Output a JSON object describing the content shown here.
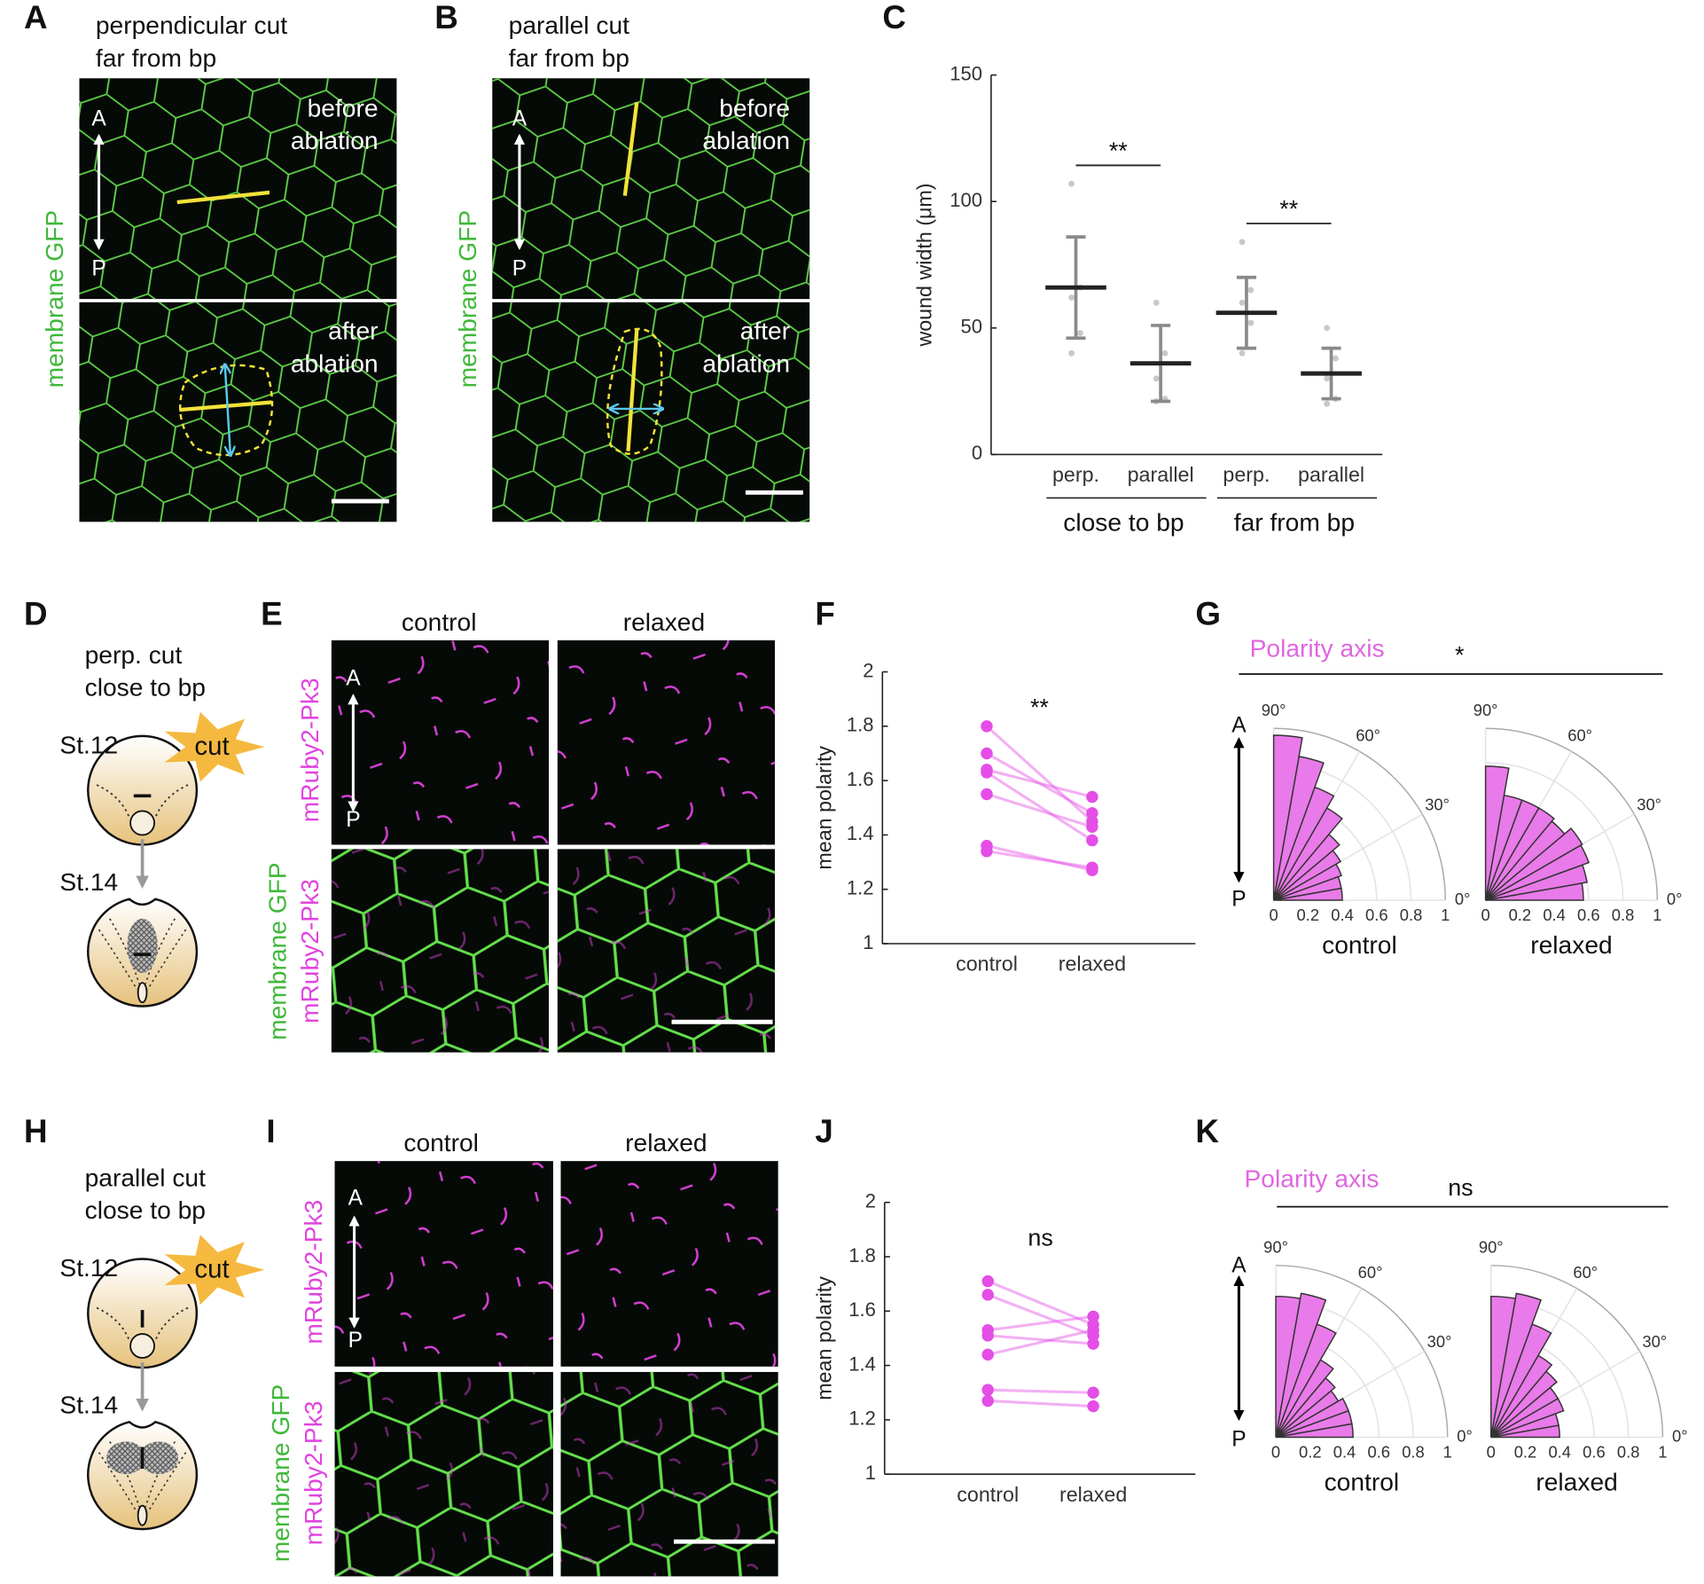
{
  "panel_labels": [
    "A",
    "B",
    "C",
    "D",
    "E",
    "F",
    "G",
    "H",
    "I",
    "J",
    "K"
  ],
  "panel_a": {
    "title": [
      "perpendicular cut",
      "far from bp"
    ],
    "channel": "membrane GFP",
    "before": [
      "before",
      "ablation"
    ],
    "after": [
      "after",
      "ablation"
    ],
    "axis": [
      "A",
      "P"
    ]
  },
  "panel_b": {
    "title": [
      "parallel cut",
      "far from bp"
    ],
    "channel": "membrane GFP",
    "before": [
      "before",
      "ablation"
    ],
    "after": [
      "after",
      "ablation"
    ],
    "axis": [
      "A",
      "P"
    ]
  },
  "panel_d": {
    "title": [
      "perp. cut",
      "close to bp"
    ],
    "stages": [
      "St.12",
      "St.14"
    ],
    "cut": "cut"
  },
  "panel_e": {
    "columns": [
      "control",
      "relaxed"
    ],
    "channels": [
      "mRuby2-Pk3",
      "membrane GFP",
      "mRuby2-Pk3"
    ],
    "axis": [
      "A",
      "P"
    ]
  },
  "panel_g": {
    "header": "Polarity axis",
    "significance": "*",
    "axis": [
      "A",
      "P"
    ]
  },
  "panel_h": {
    "title": [
      "parallel cut",
      "close to bp"
    ],
    "stages": [
      "St.12",
      "St.14"
    ],
    "cut": "cut"
  },
  "panel_i": {
    "columns": [
      "control",
      "relaxed"
    ],
    "channels": [
      "mRuby2-Pk3",
      "membrane GFP",
      "mRuby2-Pk3"
    ],
    "axis": [
      "A",
      "P"
    ]
  },
  "panel_k": {
    "header": "Polarity axis",
    "significance": "ns",
    "axis": [
      "A",
      "P"
    ]
  },
  "chart_data": [
    {
      "type": "errorbar-scatter",
      "ylabel": "wound width (μm)",
      "categories": [
        "perp.",
        "parallel",
        "perp.",
        "parallel"
      ],
      "groups": [
        "close to bp",
        "far from bp"
      ],
      "means": [
        66,
        36,
        56,
        32
      ],
      "errors": [
        20,
        15,
        14,
        10
      ],
      "points": [
        [
          107,
          66,
          62,
          48,
          40
        ],
        [
          60,
          40,
          30,
          22,
          21
        ],
        [
          84,
          65,
          60,
          52,
          40
        ],
        [
          50,
          38,
          30,
          22,
          20
        ]
      ],
      "ylim": [
        0,
        150
      ],
      "yticks": [
        0,
        50,
        100,
        150
      ],
      "significance": [
        "**",
        "**"
      ],
      "color": "#8a8a8a",
      "mean_color": "#222222"
    },
    {
      "type": "paired-line",
      "ylabel": "mean polarity",
      "categories": [
        "control",
        "relaxed"
      ],
      "series": [
        {
          "values": [
            1.8,
            1.45
          ]
        },
        {
          "values": [
            1.7,
            1.48
          ]
        },
        {
          "values": [
            1.64,
            1.54
          ]
        },
        {
          "values": [
            1.63,
            1.38
          ]
        },
        {
          "values": [
            1.55,
            1.43
          ]
        },
        {
          "values": [
            1.36,
            1.27
          ]
        },
        {
          "values": [
            1.34,
            1.28
          ]
        }
      ],
      "color": "#e44ee6",
      "ylim": [
        1,
        2
      ],
      "yticks": [
        1,
        1.2,
        1.4,
        1.6,
        1.8,
        2
      ],
      "annotation": "**"
    },
    {
      "type": "paired-line",
      "ylabel": "mean polarity",
      "categories": [
        "control",
        "relaxed"
      ],
      "series": [
        {
          "values": [
            1.71,
            1.55
          ]
        },
        {
          "values": [
            1.66,
            1.51
          ]
        },
        {
          "values": [
            1.53,
            1.58
          ]
        },
        {
          "values": [
            1.51,
            1.48
          ]
        },
        {
          "values": [
            1.44,
            1.53
          ]
        },
        {
          "values": [
            1.31,
            1.3
          ]
        },
        {
          "values": [
            1.27,
            1.25
          ]
        }
      ],
      "color": "#e44ee6",
      "ylim": [
        1,
        2
      ],
      "yticks": [
        1,
        1.2,
        1.4,
        1.6,
        1.8,
        2
      ],
      "annotation": "ns"
    },
    {
      "type": "polar-histogram",
      "title": "control",
      "bins": [
        0,
        10,
        20,
        30,
        40,
        50,
        60,
        70,
        80,
        90
      ],
      "values": [
        0.4,
        0.4,
        0.42,
        0.45,
        0.5,
        0.62,
        0.7,
        0.85,
        0.96
      ],
      "color": "#e97ae9",
      "rlim": [
        0,
        1
      ],
      "rticks": [
        0,
        0.2,
        0.4,
        0.6,
        0.8,
        1
      ],
      "thetaticks": [
        {
          "value": 0,
          "label": "0°"
        },
        {
          "value": 30,
          "label": "30°"
        },
        {
          "value": 60,
          "label": "60°"
        },
        {
          "value": 90,
          "label": "90°"
        }
      ]
    },
    {
      "type": "polar-histogram",
      "title": "relaxed",
      "bins": [
        0,
        10,
        20,
        30,
        40,
        50,
        60,
        70,
        80,
        90
      ],
      "values": [
        0.57,
        0.6,
        0.64,
        0.65,
        0.6,
        0.62,
        0.62,
        0.62,
        0.78
      ],
      "color": "#e97ae9",
      "rlim": [
        0,
        1
      ],
      "rticks": [
        0,
        0.2,
        0.4,
        0.6,
        0.8,
        1
      ],
      "thetaticks": [
        {
          "value": 0,
          "label": "0°"
        },
        {
          "value": 30,
          "label": "30°"
        },
        {
          "value": 60,
          "label": "60°"
        },
        {
          "value": 90,
          "label": "90°"
        }
      ]
    },
    {
      "type": "polar-histogram",
      "title": "control",
      "bins": [
        0,
        10,
        20,
        30,
        40,
        50,
        60,
        70,
        80,
        90
      ],
      "values": [
        0.45,
        0.45,
        0.45,
        0.42,
        0.45,
        0.52,
        0.7,
        0.85,
        0.82
      ],
      "color": "#e97ae9",
      "rlim": [
        0,
        1
      ],
      "rticks": [
        0,
        0.2,
        0.4,
        0.6,
        0.8,
        1
      ],
      "thetaticks": [
        {
          "value": 0,
          "label": "0°"
        },
        {
          "value": 30,
          "label": "30°"
        },
        {
          "value": 60,
          "label": "60°"
        },
        {
          "value": 90,
          "label": "90°"
        }
      ]
    },
    {
      "type": "polar-histogram",
      "title": "relaxed",
      "bins": [
        0,
        10,
        20,
        30,
        40,
        50,
        60,
        70,
        80,
        90
      ],
      "values": [
        0.4,
        0.4,
        0.45,
        0.45,
        0.5,
        0.55,
        0.7,
        0.85,
        0.82
      ],
      "color": "#e97ae9",
      "rlim": [
        0,
        1
      ],
      "rticks": [
        0,
        0.2,
        0.4,
        0.6,
        0.8,
        1
      ],
      "thetaticks": [
        {
          "value": 0,
          "label": "0°"
        },
        {
          "value": 30,
          "label": "30°"
        },
        {
          "value": 60,
          "label": "60°"
        },
        {
          "value": 90,
          "label": "90°"
        }
      ]
    }
  ]
}
